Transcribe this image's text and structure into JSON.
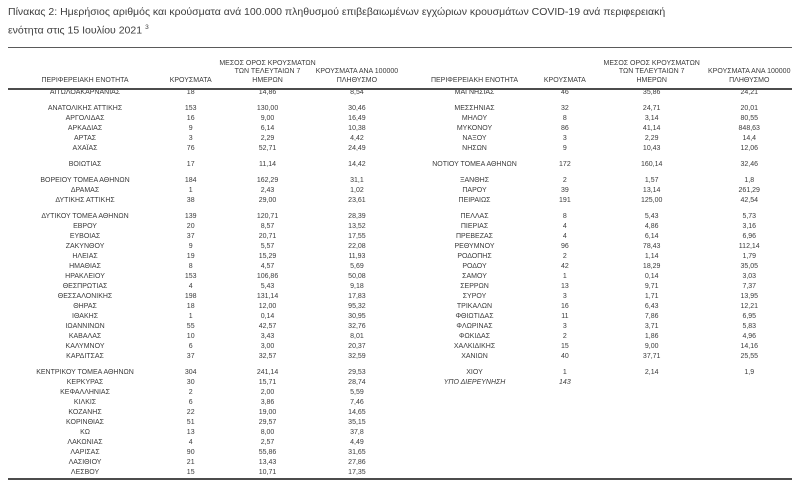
{
  "title": {
    "line1": "Πίνακας 2: Ημερήσιος αριθμός και κρούσματα ανά 100.000 πληθυσμού επιβεβαιωμένων εγχώριων κρουσμάτων COVID-19 ανά περιφερειακή",
    "line2": "ενότητα στις 15 Ιουλίου 2021",
    "footnote": "3"
  },
  "columns": [
    {
      "id": "region",
      "lines": [
        "ΠΕΡΙΦΕΡΕΙΑΚΗ ΕΝΟΤΗΤΑ"
      ]
    },
    {
      "id": "cases",
      "lines": [
        "ΚΡΟΥΣΜΑΤΑ"
      ]
    },
    {
      "id": "avg7",
      "lines": [
        "ΜΕΣΟΣ ΟΡΟΣ ΚΡΟΥΣΜΑΤΩΝ",
        "ΤΩΝ ΤΕΛΕΥΤΑΙΩΝ 7",
        "ΗΜΕΡΩΝ"
      ]
    },
    {
      "id": "per100k",
      "lines": [
        "ΚΡΟΥΣΜΑΤΑ ΑΝΑ 100000",
        "ΠΛΗΘΥΣΜΟ"
      ]
    }
  ],
  "left_table": {
    "groups": [
      [
        [
          "ΑΙΤΩΛΟΑΚΑΡΝΑΝΙΑΣ",
          "18",
          "14,86",
          "8,54"
        ]
      ],
      [
        [
          "ΑΝΑΤΟΛΙΚΗΣ ΑΤΤΙΚΗΣ",
          "153",
          "130,00",
          "30,46"
        ],
        [
          "ΑΡΓΟΛΙΔΑΣ",
          "16",
          "9,00",
          "16,49"
        ],
        [
          "ΑΡΚΑΔΙΑΣ",
          "9",
          "6,14",
          "10,38"
        ],
        [
          "ΑΡΤΑΣ",
          "3",
          "2,29",
          "4,42"
        ],
        [
          "ΑΧΑΪΑΣ",
          "76",
          "52,71",
          "24,49"
        ]
      ],
      [
        [
          "ΒΟΙΩΤΙΑΣ",
          "17",
          "11,14",
          "14,42"
        ]
      ],
      [
        [
          "ΒΟΡΕΙΟΥ ΤΟΜΕΑ ΑΘΗΝΩΝ",
          "184",
          "162,29",
          "31,1"
        ],
        [
          "ΔΡΑΜΑΣ",
          "1",
          "2,43",
          "1,02"
        ],
        [
          "ΔΥΤΙΚΗΣ ΑΤΤΙΚΗΣ",
          "38",
          "29,00",
          "23,61"
        ]
      ],
      [
        [
          "ΔΥΤΙΚΟΥ ΤΟΜΕΑ ΑΘΗΝΩΝ",
          "139",
          "120,71",
          "28,39"
        ],
        [
          "ΕΒΡΟΥ",
          "20",
          "8,57",
          "13,52"
        ],
        [
          "ΕΥΒΟΙΑΣ",
          "37",
          "20,71",
          "17,55"
        ],
        [
          "ΖΑΚΥΝΘΟΥ",
          "9",
          "5,57",
          "22,08"
        ],
        [
          "ΗΛΕΙΑΣ",
          "19",
          "15,29",
          "11,93"
        ],
        [
          "ΗΜΑΘΙΑΣ",
          "8",
          "4,57",
          "5,69"
        ],
        [
          "ΗΡΑΚΛΕΙΟΥ",
          "153",
          "106,86",
          "50,08"
        ],
        [
          "ΘΕΣΠΡΩΤΙΑΣ",
          "4",
          "5,43",
          "9,18"
        ],
        [
          "ΘΕΣΣΑΛΟΝΙΚΗΣ",
          "198",
          "131,14",
          "17,83"
        ],
        [
          "ΘΗΡΑΣ",
          "18",
          "12,00",
          "95,32"
        ],
        [
          "ΙΘΑΚΗΣ",
          "1",
          "0,14",
          "30,95"
        ],
        [
          "ΙΩΑΝΝΙΝΩΝ",
          "55",
          "42,57",
          "32,76"
        ],
        [
          "ΚΑΒΑΛΑΣ",
          "10",
          "3,43",
          "8,01"
        ],
        [
          "ΚΑΛΥΜΝΟΥ",
          "6",
          "3,00",
          "20,37"
        ],
        [
          "ΚΑΡΔΙΤΣΑΣ",
          "37",
          "32,57",
          "32,59"
        ]
      ],
      [
        [
          "ΚΕΝΤΡΙΚΟΥ ΤΟΜΕΑ ΑΘΗΝΩΝ",
          "304",
          "241,14",
          "29,53"
        ],
        [
          "ΚΕΡΚΥΡΑΣ",
          "30",
          "15,71",
          "28,74"
        ],
        [
          "ΚΕΦΑΛΛΗΝΙΑΣ",
          "2",
          "2,00",
          "5,59"
        ],
        [
          "ΚΙΛΚΙΣ",
          "6",
          "3,86",
          "7,46"
        ],
        [
          "ΚΟΖΑΝΗΣ",
          "22",
          "19,00",
          "14,65"
        ],
        [
          "ΚΟΡΙΝΘΙΑΣ",
          "51",
          "29,57",
          "35,15"
        ],
        [
          "ΚΩ",
          "13",
          "8,00",
          "37,8"
        ],
        [
          "ΛΑΚΩΝΙΑΣ",
          "4",
          "2,57",
          "4,49"
        ],
        [
          "ΛΑΡΙΣΑΣ",
          "90",
          "55,86",
          "31,65"
        ],
        [
          "ΛΑΣΙΘΙΟΥ",
          "21",
          "13,43",
          "27,86"
        ],
        [
          "ΛΕΣΒΟΥ",
          "15",
          "10,71",
          "17,35"
        ]
      ]
    ]
  },
  "right_table": {
    "groups": [
      [
        [
          "ΜΑΓΝΗΣΙΑΣ",
          "46",
          "35,86",
          "24,21"
        ]
      ],
      [
        [
          "ΜΕΣΣΗΝΙΑΣ",
          "32",
          "24,71",
          "20,01"
        ],
        [
          "ΜΗΛΟΥ",
          "8",
          "3,14",
          "80,55"
        ],
        [
          "ΜΥΚΟΝΟΥ",
          "86",
          "41,14",
          "848,63"
        ],
        [
          "ΝΑΞΟΥ",
          "3",
          "2,29",
          "14,4"
        ],
        [
          "ΝΗΣΩΝ",
          "9",
          "10,43",
          "12,06"
        ]
      ],
      [
        [
          "ΝΟΤΙΟΥ ΤΟΜΕΑ ΑΘΗΝΩΝ",
          "172",
          "160,14",
          "32,46"
        ]
      ],
      [
        [
          "ΞΑΝΘΗΣ",
          "2",
          "1,57",
          "1,8"
        ],
        [
          "ΠΑΡΟΥ",
          "39",
          "13,14",
          "261,29"
        ],
        [
          "ΠΕΙΡΑΙΩΣ",
          "191",
          "125,00",
          "42,54"
        ]
      ],
      [
        [
          "ΠΕΛΛΑΣ",
          "8",
          "5,43",
          "5,73"
        ],
        [
          "ΠΙΕΡΙΑΣ",
          "4",
          "4,86",
          "3,16"
        ],
        [
          "ΠΡΕΒΕΖΑΣ",
          "4",
          "6,14",
          "6,96"
        ],
        [
          "ΡΕΘΥΜΝΟΥ",
          "96",
          "78,43",
          "112,14"
        ],
        [
          "ΡΟΔΟΠΗΣ",
          "2",
          "1,14",
          "1,79"
        ],
        [
          "ΡΟΔΟΥ",
          "42",
          "18,29",
          "35,05"
        ],
        [
          "ΣΑΜΟΥ",
          "1",
          "0,14",
          "3,03"
        ],
        [
          "ΣΕΡΡΩΝ",
          "13",
          "9,71",
          "7,37"
        ],
        [
          "ΣΥΡΟΥ",
          "3",
          "1,71",
          "13,95"
        ],
        [
          "ΤΡΙΚΑΛΩΝ",
          "16",
          "6,43",
          "12,21"
        ],
        [
          "ΦΘΙΩΤΙΔΑΣ",
          "11",
          "7,86",
          "6,95"
        ],
        [
          "ΦΛΩΡΙΝΑΣ",
          "3",
          "3,71",
          "5,83"
        ],
        [
          "ΦΩΚΙΔΑΣ",
          "2",
          "1,86",
          "4,96"
        ],
        [
          "ΧΑΛΚΙΔΙΚΗΣ",
          "15",
          "9,00",
          "14,16"
        ],
        [
          "ΧΑΝΙΩΝ",
          "40",
          "37,71",
          "25,55"
        ]
      ],
      [
        [
          "ΧΙΟΥ",
          "1",
          "2,14",
          "1,9"
        ],
        {
          "values": [
            "ΥΠΟ ΔΙΕΡΕΥΝΗΣΗ",
            "143",
            "",
            ""
          ],
          "italic": true
        }
      ]
    ]
  }
}
